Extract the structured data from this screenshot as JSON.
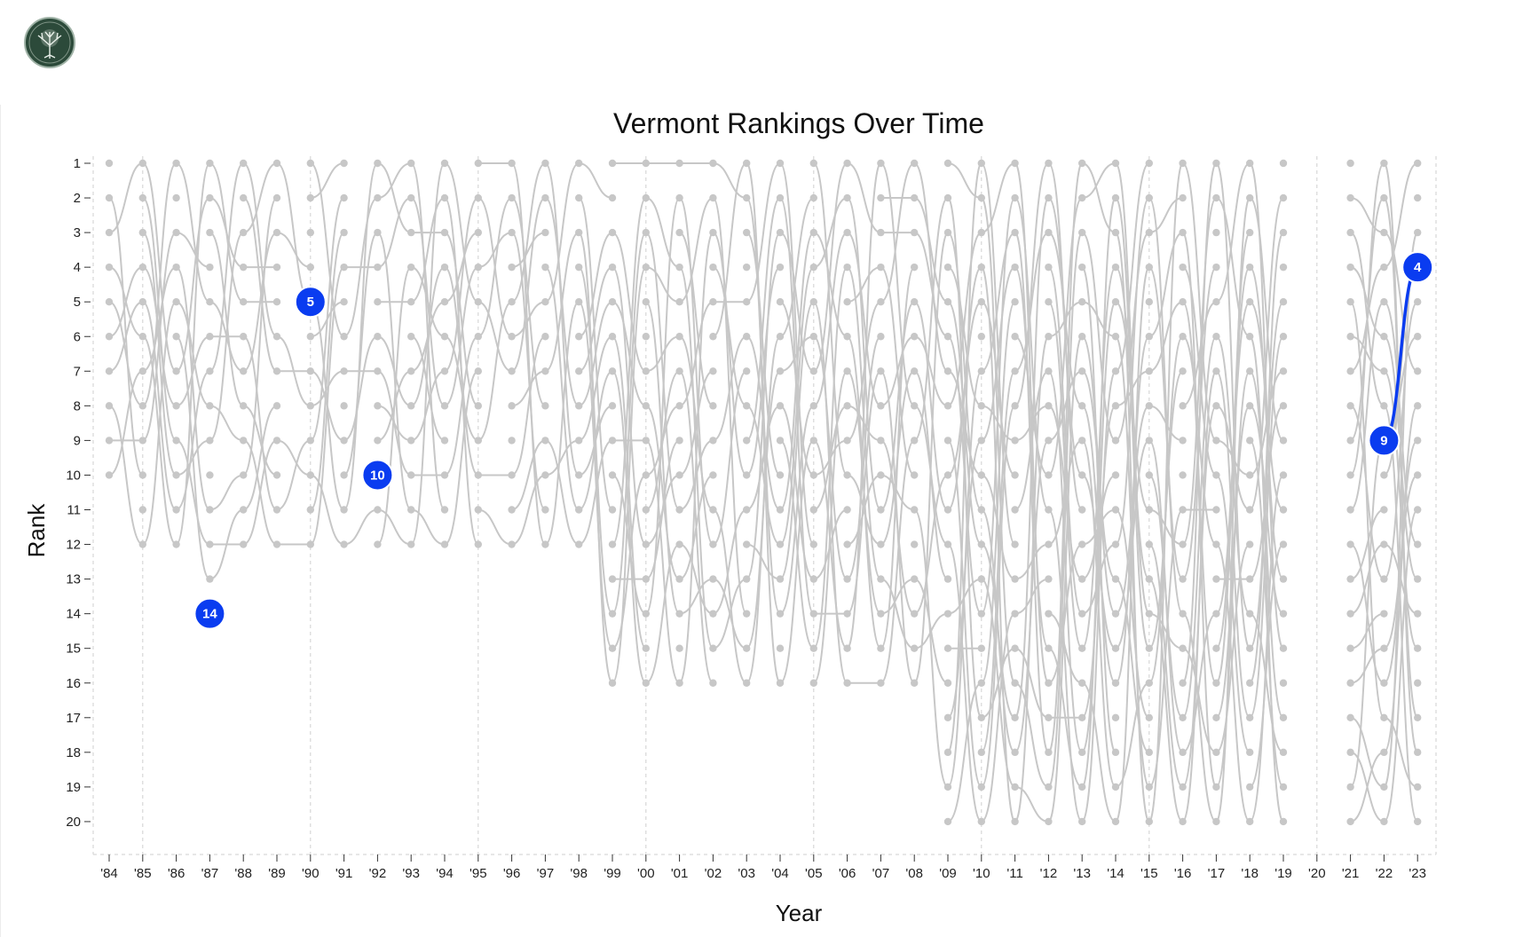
{
  "chart_data": {
    "type": "line",
    "title": "Vermont Rankings Over Time",
    "xlabel": "Year",
    "ylabel": "Rank",
    "ylim": [
      1,
      20
    ],
    "x": [
      "'84",
      "'85",
      "'86",
      "'87",
      "'88",
      "'89",
      "'90",
      "'91",
      "'92",
      "'93",
      "'94",
      "'95",
      "'96",
      "'97",
      "'98",
      "'99",
      "'00",
      "'01",
      "'02",
      "'03",
      "'04",
      "'05",
      "'06",
      "'07",
      "'08",
      "'09",
      "'10",
      "'11",
      "'12",
      "'13",
      "'14",
      "'15",
      "'16",
      "'17",
      "'18",
      "'19",
      "'20",
      "'21",
      "'22",
      "'23"
    ],
    "y_ticks": [
      1,
      2,
      3,
      4,
      5,
      6,
      7,
      8,
      9,
      10,
      11,
      12,
      13,
      14,
      15,
      16,
      17,
      18,
      19,
      20
    ],
    "teams_per_year": [
      10,
      12,
      12,
      13,
      12,
      12,
      12,
      12,
      12,
      12,
      12,
      12,
      12,
      12,
      12,
      16,
      16,
      16,
      16,
      16,
      16,
      16,
      16,
      16,
      16,
      20,
      20,
      20,
      20,
      20,
      20,
      20,
      20,
      20,
      20,
      20,
      0,
      20,
      20,
      20
    ],
    "highlight_series": {
      "name": "Vermont",
      "points": [
        {
          "year": "'87",
          "rank": 14
        },
        {
          "year": "'90",
          "rank": 5
        },
        {
          "year": "'92",
          "rank": 10
        },
        {
          "year": "'22",
          "rank": 9
        },
        {
          "year": "'23",
          "rank": 4
        }
      ]
    },
    "grid": "dashed vertical lines every 5 years",
    "colors": {
      "highlight": "#0a3cf0",
      "other_teams": "#c7c7c7"
    }
  },
  "logo": {
    "icon": "tree-icon",
    "colors": {
      "ring": "#2c4a3a",
      "tree": "#e8efe9"
    }
  }
}
